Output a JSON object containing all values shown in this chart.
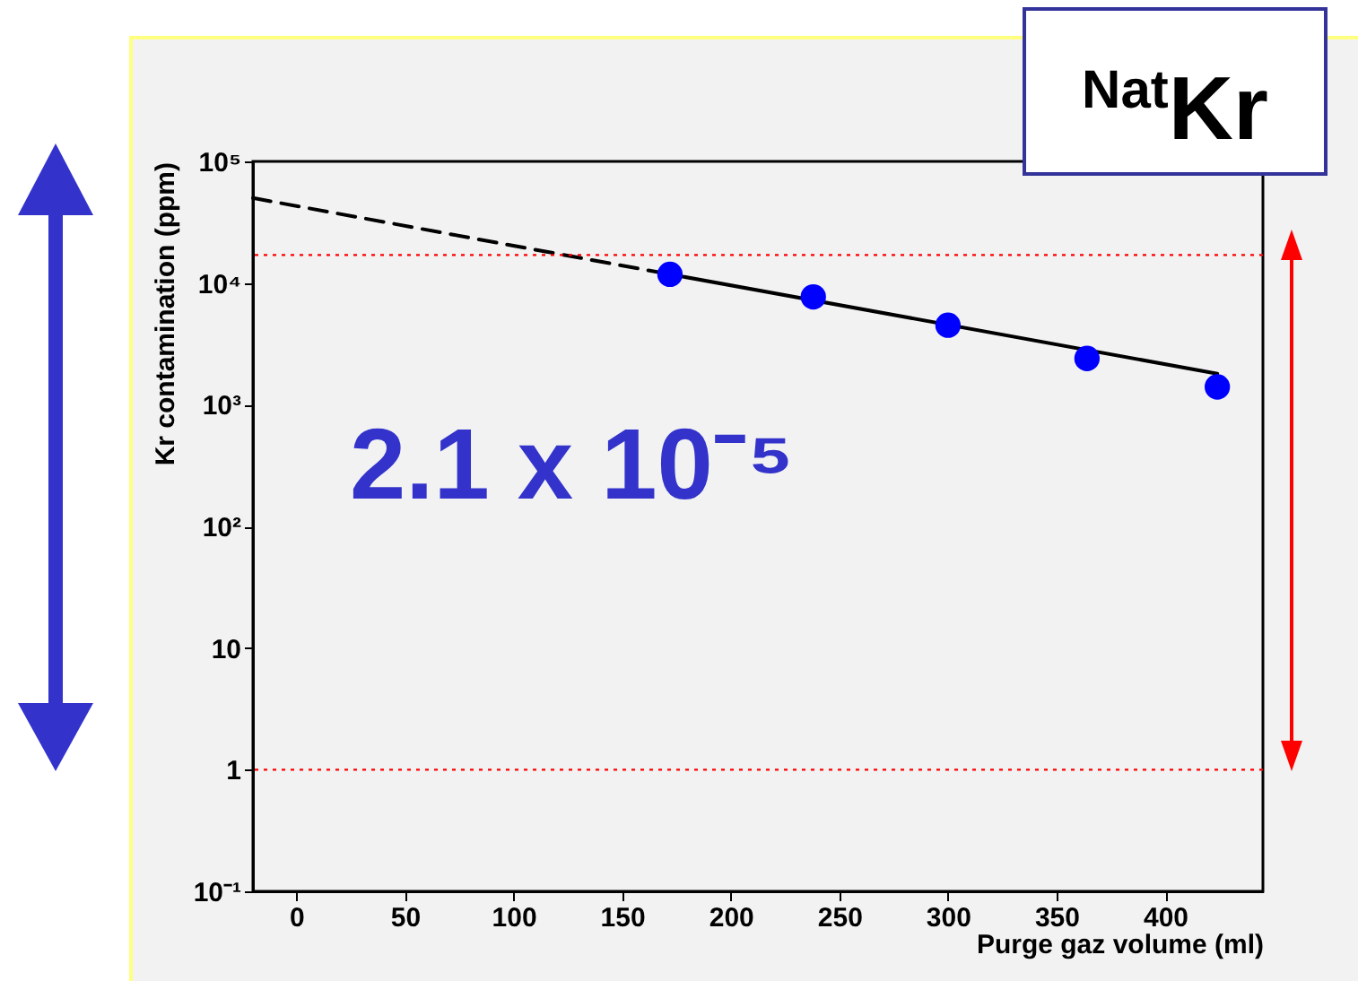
{
  "chart_data": {
    "type": "scatter",
    "xlabel": "Purge gaz volume (ml)",
    "ylabel": "Kr contamination (ppm)",
    "log": true,
    "grid": false,
    "xlim": [
      -20,
      445
    ],
    "xticks": [
      0,
      50,
      100,
      150,
      200,
      250,
      300,
      350,
      400
    ],
    "ylim": [
      0.1,
      100000
    ],
    "yticks": [
      {
        "value": 0.1,
        "label": "10⁻¹"
      },
      1,
      10,
      {
        "value": 100,
        "label": "10²"
      },
      {
        "value": 1000,
        "label": "10³"
      },
      {
        "value": 10000,
        "label": "10⁴"
      },
      {
        "value": 100000,
        "label": "10⁵"
      }
    ],
    "annotations": [
      "2.1 x 10⁻⁵",
      "$^{Nat}$Kr"
    ],
    "ref_lines": [
      {
        "axis": "y",
        "value": 17000,
        "color": "#ff0000",
        "line_style": "dotted"
      },
      {
        "axis": "y",
        "value": 1,
        "color": "#ff0000",
        "line_style": "dotted"
      }
    ],
    "series": [
      {
        "type": "line",
        "color": "#000000",
        "line_style": "dashed",
        "x": [
          -20,
          172
        ],
        "values": [
          50000,
          11800
        ]
      },
      {
        "type": "line",
        "color": "#000000",
        "line_style": "solid",
        "x": [
          172,
          424
        ],
        "values": [
          11800,
          1800
        ]
      },
      {
        "type": "scatter",
        "color": "#0000ff",
        "marker": "circle",
        "x": [
          172,
          238,
          300,
          364,
          424
        ],
        "values": [
          11800,
          7700,
          4500,
          2400,
          1400
        ]
      }
    ]
  }
}
